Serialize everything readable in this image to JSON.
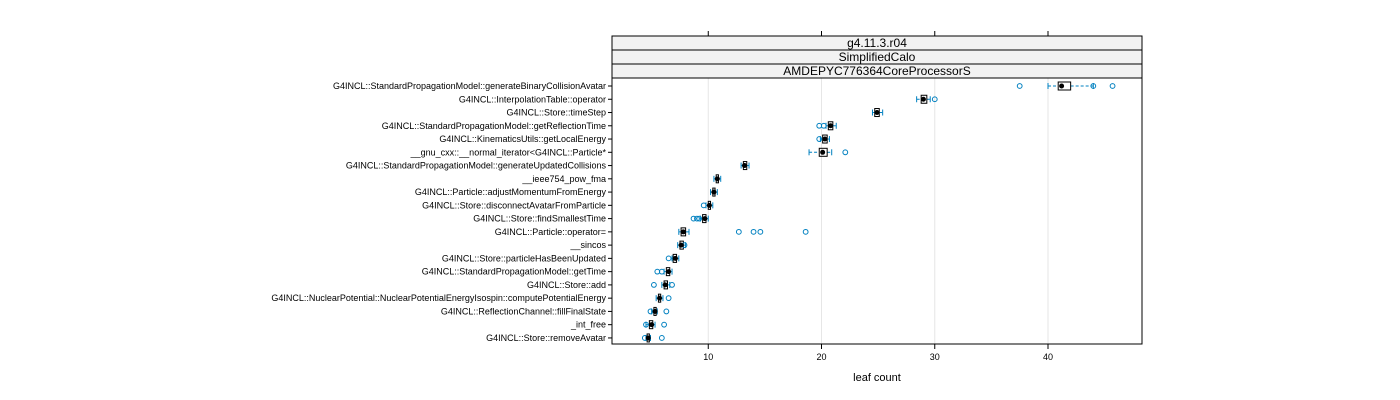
{
  "chart_data": {
    "type": "boxplot",
    "strips": [
      "g4.11.3.r04",
      "SimplifiedCalo",
      "AMDEPYC776364CoreProcessorS"
    ],
    "xlabel": "leaf count",
    "xlim": [
      1.5,
      48.3
    ],
    "xticks": [
      10,
      20,
      30,
      40
    ],
    "grid": true,
    "box_color": "#000000",
    "point_color": "#0080c0",
    "whisker_color": "#0080c0",
    "grid_color": "#e6e6e6",
    "strip_fill": "#f2f2f2",
    "categories": [
      "G4INCL::StandardPropagationModel::generateBinaryCollisionAvatar",
      "G4INCL::InterpolationTable::operator",
      "G4INCL::Store::timeStep",
      "G4INCL::StandardPropagationModel::getReflectionTime",
      "G4INCL::KinematicsUtils::getLocalEnergy",
      "__gnu_cxx::__normal_iterator<G4INCL::Particle*",
      "G4INCL::StandardPropagationModel::generateUpdatedCollisions",
      "__ieee754_pow_fma",
      "G4INCL::Particle::adjustMomentumFromEnergy",
      "G4INCL::Store::disconnectAvatarFromParticle",
      "G4INCL::Store::findSmallestTime",
      "G4INCL::Particle::operator=",
      "__sincos",
      "G4INCL::Store::particleHasBeenUpdated",
      "G4INCL::StandardPropagationModel::getTime",
      "G4INCL::Store::add",
      "G4INCL::NuclearPotential::NuclearPotentialEnergyIsospin::computePotentialEnergy",
      "G4INCL::ReflectionChannel::fillFinalState",
      "_int_free",
      "G4INCL::Store::removeAvatar"
    ],
    "boxes": [
      {
        "whisker_low": 40.0,
        "q1": 40.9,
        "median": 41.2,
        "q3": 42.0,
        "whisker_high": 44.0,
        "outliers": [
          37.5,
          44.0,
          45.7
        ]
      },
      {
        "whisker_low": 28.4,
        "q1": 28.8,
        "median": 29.0,
        "q3": 29.3,
        "whisker_high": 29.6,
        "outliers": [
          30.0
        ]
      },
      {
        "whisker_low": 24.5,
        "q1": 24.7,
        "median": 24.9,
        "q3": 25.1,
        "whisker_high": 25.4,
        "outliers": []
      },
      {
        "whisker_low": 20.4,
        "q1": 20.6,
        "median": 20.8,
        "q3": 21.0,
        "whisker_high": 21.3,
        "outliers": [
          19.8,
          20.2
        ]
      },
      {
        "whisker_low": 19.9,
        "q1": 20.1,
        "median": 20.3,
        "q3": 20.5,
        "whisker_high": 20.7,
        "outliers": [
          19.8
        ]
      },
      {
        "whisker_low": 18.9,
        "q1": 19.8,
        "median": 20.1,
        "q3": 20.5,
        "whisker_high": 20.9,
        "outliers": [
          22.1
        ]
      },
      {
        "whisker_low": 12.9,
        "q1": 13.1,
        "median": 13.2,
        "q3": 13.4,
        "whisker_high": 13.6,
        "outliers": []
      },
      {
        "whisker_low": 10.5,
        "q1": 10.7,
        "median": 10.8,
        "q3": 10.9,
        "whisker_high": 11.1,
        "outliers": []
      },
      {
        "whisker_low": 10.2,
        "q1": 10.4,
        "median": 10.5,
        "q3": 10.6,
        "whisker_high": 10.8,
        "outliers": []
      },
      {
        "whisker_low": 9.8,
        "q1": 10.0,
        "median": 10.1,
        "q3": 10.2,
        "whisker_high": 10.4,
        "outliers": [
          9.6
        ]
      },
      {
        "whisker_low": 9.3,
        "q1": 9.5,
        "median": 9.7,
        "q3": 9.8,
        "whisker_high": 10.0,
        "outliers": [
          8.7,
          9.0,
          9.2
        ]
      },
      {
        "whisker_low": 7.4,
        "q1": 7.6,
        "median": 7.8,
        "q3": 8.0,
        "whisker_high": 8.3,
        "outliers": [
          12.7,
          14.0,
          14.6,
          18.6
        ]
      },
      {
        "whisker_low": 7.3,
        "q1": 7.5,
        "median": 7.6,
        "q3": 7.8,
        "whisker_high": 8.0,
        "outliers": [
          7.9
        ]
      },
      {
        "whisker_low": 6.8,
        "q1": 6.9,
        "median": 7.1,
        "q3": 7.2,
        "whisker_high": 7.4,
        "outliers": [
          6.5
        ]
      },
      {
        "whisker_low": 6.1,
        "q1": 6.3,
        "median": 6.5,
        "q3": 6.6,
        "whisker_high": 6.8,
        "outliers": [
          5.5,
          5.9
        ]
      },
      {
        "whisker_low": 5.9,
        "q1": 6.1,
        "median": 6.2,
        "q3": 6.4,
        "whisker_high": 6.6,
        "outliers": [
          5.2,
          6.8
        ]
      },
      {
        "whisker_low": 5.4,
        "q1": 5.6,
        "median": 5.7,
        "q3": 5.8,
        "whisker_high": 6.0,
        "outliers": [
          6.5
        ]
      },
      {
        "whisker_low": 5.0,
        "q1": 5.2,
        "median": 5.3,
        "q3": 5.4,
        "whisker_high": 5.5,
        "outliers": [
          4.9,
          6.3
        ]
      },
      {
        "whisker_low": 4.5,
        "q1": 4.8,
        "median": 5.0,
        "q3": 5.1,
        "whisker_high": 5.3,
        "outliers": [
          4.5,
          6.1
        ]
      },
      {
        "whisker_low": 4.5,
        "q1": 4.6,
        "median": 4.7,
        "q3": 4.8,
        "whisker_high": 4.9,
        "outliers": [
          4.4,
          5.9
        ]
      }
    ]
  }
}
